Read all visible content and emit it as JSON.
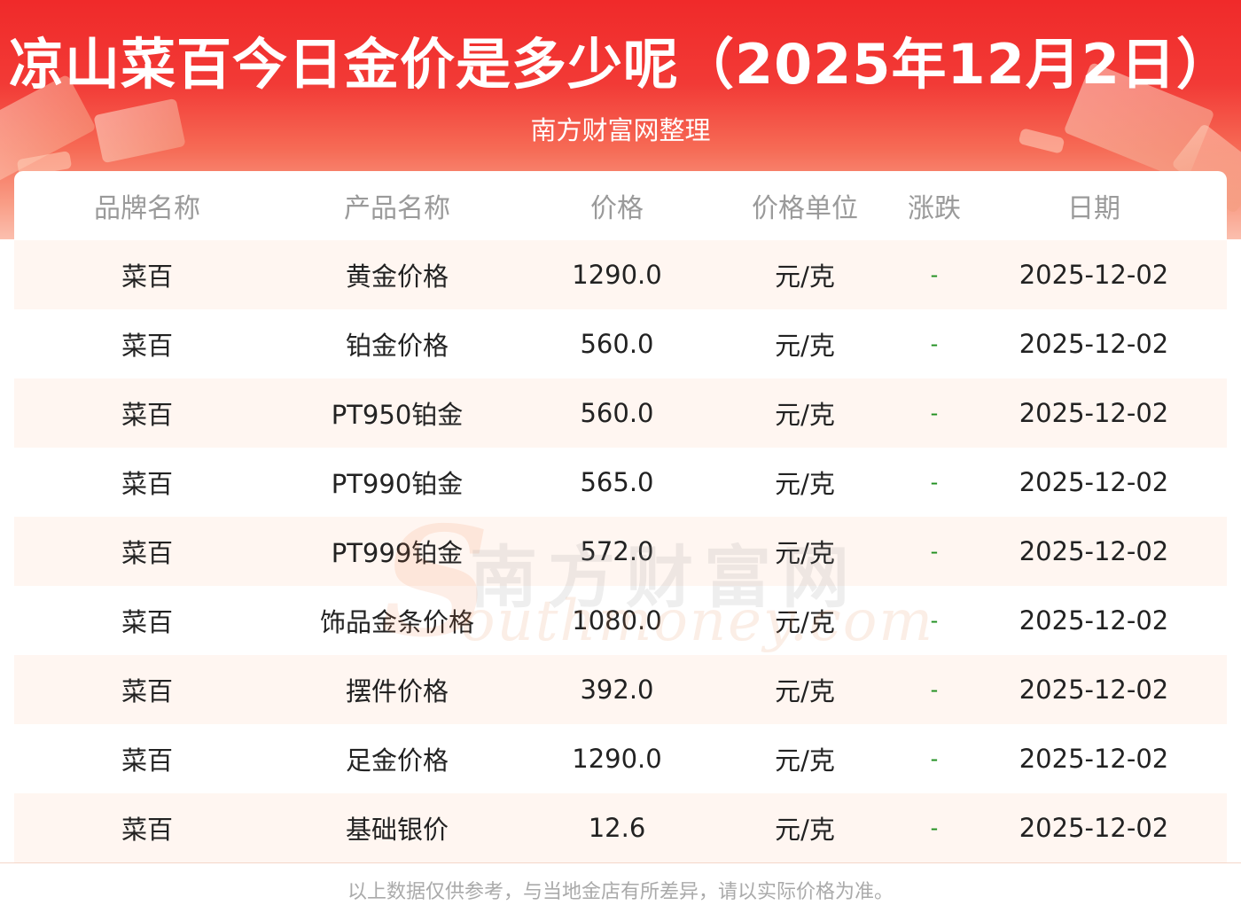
{
  "header": {
    "title": "凉山菜百今日金价是多少呢（2025年12月2日）",
    "subtitle": "南方财富网整理"
  },
  "table": {
    "columns": [
      "品牌名称",
      "产品名称",
      "价格",
      "价格单位",
      "涨跌",
      "日期"
    ],
    "rows": [
      [
        "菜百",
        "黄金价格",
        "1290.0",
        "元/克",
        "-",
        "2025-12-02"
      ],
      [
        "菜百",
        "铂金价格",
        "560.0",
        "元/克",
        "-",
        "2025-12-02"
      ],
      [
        "菜百",
        "PT950铂金",
        "560.0",
        "元/克",
        "-",
        "2025-12-02"
      ],
      [
        "菜百",
        "PT990铂金",
        "565.0",
        "元/克",
        "-",
        "2025-12-02"
      ],
      [
        "菜百",
        "PT999铂金",
        "572.0",
        "元/克",
        "-",
        "2025-12-02"
      ],
      [
        "菜百",
        "饰品金条价格",
        "1080.0",
        "元/克",
        "-",
        "2025-12-02"
      ],
      [
        "菜百",
        "摆件价格",
        "392.0",
        "元/克",
        "-",
        "2025-12-02"
      ],
      [
        "菜百",
        "足金价格",
        "1290.0",
        "元/克",
        "-",
        "2025-12-02"
      ],
      [
        "菜百",
        "基础银价",
        "12.6",
        "元/克",
        "-",
        "2025-12-02"
      ]
    ]
  },
  "watermark": {
    "initial": "S",
    "cn": "南方财富网",
    "en": "outhmoney.com"
  },
  "footer": {
    "note": "以上数据仅供参考，与当地金店有所差异，请以实际价格为准。"
  },
  "colors": {
    "banner_red": "#f02a2a",
    "row_alt": "#fff6f1",
    "change_green": "#1f8f1f"
  }
}
